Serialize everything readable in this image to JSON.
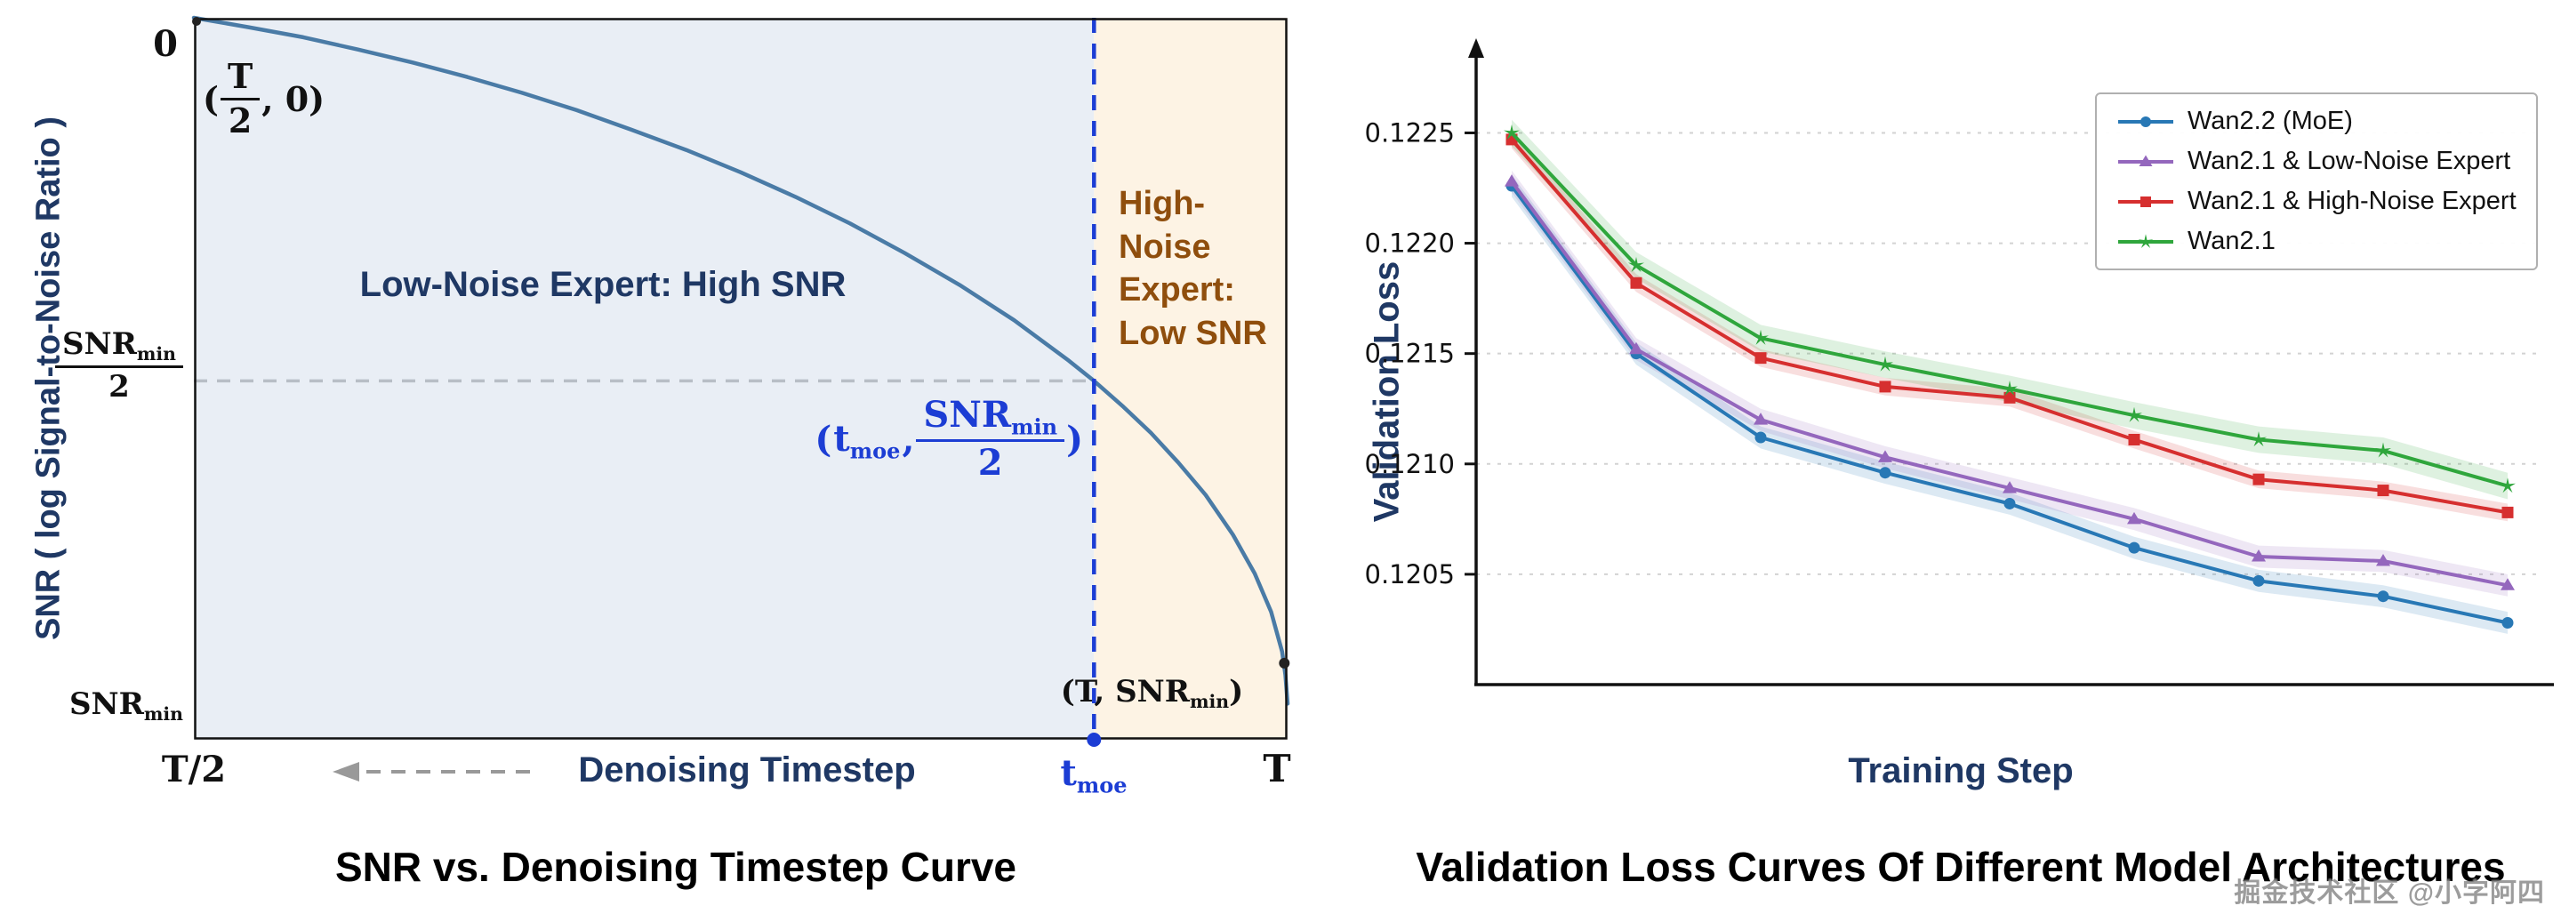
{
  "watermark": {
    "text": "掘金技术社区 @小字阿四"
  },
  "left_labels": {
    "y_axis_title": "SNR ( log Signal-to-Noise Ratio )",
    "zero": "0",
    "snr_half": {
      "num_main": "SNR",
      "num_sub": "min",
      "den": "2"
    },
    "snr_min": {
      "main": "SNR",
      "sub": "min"
    },
    "x_t_half": "T/2",
    "x_tmoe": {
      "main": "t",
      "sub": "moe"
    },
    "x_T": "T",
    "ann_start": {
      "open": "(",
      "num": "T",
      "den": "2",
      "post": ", 0)"
    },
    "ann_tmoe": {
      "open": "(",
      "t_main": "t",
      "t_sub": "moe",
      "comma": ", ",
      "num_main": "SNR",
      "num_sub": "min",
      "den": "2",
      "close": ")"
    },
    "ann_end": {
      "open": "(T, ",
      "main": "SNR",
      "sub": "min",
      "close": ")"
    },
    "region_low": "Low-Noise Expert: High SNR",
    "region_high_lines": [
      "High-",
      "Noise",
      "Expert:",
      "Low SNR"
    ],
    "x_axis_title": "Denoising Timestep"
  },
  "chart_data": [
    {
      "id": "snr-vs-timestep",
      "type": "line",
      "title": "SNR vs. Denoising Timestep Curve",
      "xlabel": "Denoising Timestep",
      "ylabel": "SNR ( log Signal-to-Noise Ratio )",
      "x_tick_labels": [
        "T/2",
        "t_moe",
        "T"
      ],
      "y_tick_labels": [
        "0",
        "SNR_min/2",
        "SNR_min"
      ],
      "key_points": [
        {
          "label": "(T/2, 0)",
          "u": 0.0,
          "v": 0.0
        },
        {
          "label": "(t_moe, SNR_min/2)",
          "u": 0.823,
          "v": 0.503
        },
        {
          "label": "(T, SNR_min)",
          "u": 1.0,
          "v": 0.95
        }
      ],
      "regions": [
        {
          "label": "Low-Noise Expert: High SNR",
          "fill": "#e9eef5",
          "text_color": "#1f3864"
        },
        {
          "label": "High-Noise Expert: Low SNR",
          "fill": "#fdf3e4",
          "text_color": "#8f4e0d"
        }
      ],
      "t_moe_u": 0.823,
      "snr_half_v": 0.503,
      "end_dot_uv": [
        0.997,
        0.894
      ],
      "colors": {
        "curve": "#4a7ba6",
        "tmoe_line": "#1c3dd4",
        "dashed_gray": "#b8bec6",
        "border": "#111111"
      },
      "curve_points": [
        [
          0.0,
          0.0
        ],
        [
          0.05,
          0.013
        ],
        [
          0.1,
          0.027
        ],
        [
          0.15,
          0.044
        ],
        [
          0.2,
          0.062
        ],
        [
          0.25,
          0.082
        ],
        [
          0.3,
          0.104
        ],
        [
          0.35,
          0.128
        ],
        [
          0.4,
          0.155
        ],
        [
          0.45,
          0.183
        ],
        [
          0.5,
          0.214
        ],
        [
          0.55,
          0.248
        ],
        [
          0.6,
          0.285
        ],
        [
          0.65,
          0.326
        ],
        [
          0.7,
          0.37
        ],
        [
          0.75,
          0.419
        ],
        [
          0.8,
          0.475
        ],
        [
          0.823,
          0.503
        ],
        [
          0.85,
          0.539
        ],
        [
          0.875,
          0.575
        ],
        [
          0.9,
          0.616
        ],
        [
          0.925,
          0.661
        ],
        [
          0.95,
          0.716
        ],
        [
          0.97,
          0.77
        ],
        [
          0.985,
          0.823
        ],
        [
          0.995,
          0.878
        ],
        [
          0.998,
          0.91
        ],
        [
          1.0,
          0.95
        ]
      ]
    },
    {
      "id": "validation-loss",
      "type": "line",
      "title": "Validation Loss Curves Of Different Model Architectures",
      "xlabel": "Training Step",
      "ylabel": "Validation Loss",
      "x": [
        1,
        2,
        3,
        4,
        5,
        6,
        7,
        8,
        9
      ],
      "ylim": [
        0.12,
        0.1228
      ],
      "yticks": [
        0.1205,
        0.121,
        0.1215,
        0.122,
        0.1225
      ],
      "ytick_labels": [
        "0.1205",
        "0.1210",
        "0.1215",
        "0.1220",
        "0.1225"
      ],
      "grid": true,
      "legend_position": "top-right",
      "series": [
        {
          "name": "Wan2.2 (MoE)",
          "color": "#2878b5",
          "marker": "circle",
          "band": 5e-05,
          "values": [
            0.12226,
            0.1215,
            0.12112,
            0.12096,
            0.12082,
            0.12062,
            0.12047,
            0.1204,
            0.12028
          ]
        },
        {
          "name": "Wan2.1 & Low-Noise Expert",
          "color": "#9467bd",
          "marker": "triangle",
          "band": 5e-05,
          "values": [
            0.12228,
            0.12152,
            0.1212,
            0.12103,
            0.12089,
            0.12075,
            0.12058,
            0.12056,
            0.12045
          ]
        },
        {
          "name": "Wan2.1 & High-Noise Expert",
          "color": "#d62f2f",
          "marker": "square",
          "band": 4e-05,
          "values": [
            0.12247,
            0.12182,
            0.12148,
            0.12135,
            0.1213,
            0.12111,
            0.12093,
            0.12088,
            0.12078
          ]
        },
        {
          "name": "Wan2.1",
          "color": "#2fa63c",
          "marker": "star",
          "band": 6e-05,
          "values": [
            0.1225,
            0.1219,
            0.12157,
            0.12145,
            0.12134,
            0.12122,
            0.12111,
            0.12106,
            0.1209
          ]
        }
      ]
    }
  ]
}
